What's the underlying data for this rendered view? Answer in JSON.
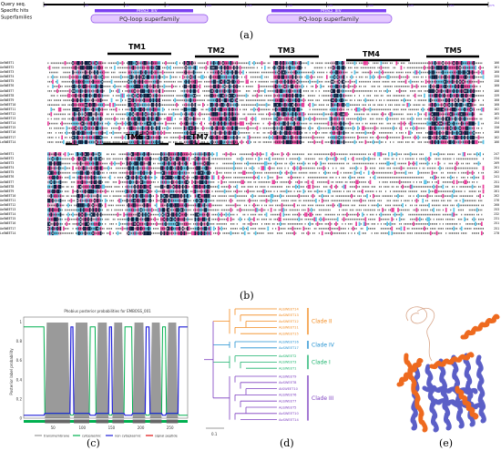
{
  "panel_labels": {
    "a": "(a)",
    "b": "(b)",
    "c": "(c)",
    "d": "(d)",
    "e": "(e)"
  },
  "cdd": {
    "row_labels": [
      "Query seq.",
      "Specific hits",
      "Superfamilies"
    ],
    "ticks": [
      "1",
      "25",
      "50",
      "75",
      "100",
      "125",
      "150",
      "175",
      "200",
      "225",
      "250",
      "275"
    ],
    "hit_label": "MtN3_slv",
    "superfamily_label": "PQ-loop superfamily",
    "colors": {
      "hit": "#7b3ff2",
      "super": "#e4c8ff",
      "super_border": "#8a4de8"
    }
  },
  "alignment": {
    "block1": {
      "tm_labels": [
        "TM1",
        "TM2",
        "TM3",
        "TM4",
        "TM5"
      ],
      "names": [
        "AoSWEET1",
        "AoSWEET2",
        "AoSWEET3",
        "AoSWEET4",
        "AoSWEET5",
        "AoSWEET6",
        "AoSWEET7",
        "AoSWEET8",
        "AoSWEET9",
        "AoSWEET10",
        "AoSWEET11",
        "AoSWEET12",
        "AoSWEET13",
        "AoSWEET14",
        "AoSWEET15",
        "AoSWEET16",
        "AoSWEET17",
        "LoSWEET14"
      ],
      "ends": [
        "166",
        "161",
        "160",
        "155",
        "158",
        "160",
        "166",
        "159",
        "160",
        "160",
        "162",
        "165",
        "162",
        "154",
        "150",
        "160",
        "162",
        "166"
      ]
    },
    "block2": {
      "tm_labels": [
        "TM6",
        "TM7"
      ],
      "names": [
        "AoSWEET1",
        "AoSWEET2",
        "AoSWEET3",
        "AoSWEET4",
        "AoSWEET5",
        "AoSWEET6",
        "AoSWEET7",
        "AoSWEET8",
        "AoSWEET9",
        "AoSWEET10",
        "AoSWEET11",
        "AoSWEET12",
        "AoSWEET13",
        "AoSWEET14",
        "AoSWEET15",
        "AoSWEET16",
        "AoSWEET17",
        "LoSWEET14"
      ],
      "ends": [
        "247",
        "234",
        "269",
        "261",
        "262",
        "241",
        "251",
        "260",
        "261",
        "262",
        "276",
        "260",
        "253",
        "232",
        "231",
        "251",
        "251",
        "270"
      ]
    },
    "colors": {
      "dark": "#0a1b3d",
      "pink": "#e83d9a",
      "cyan": "#57c4e8",
      "pale": "#f0c4dc"
    }
  },
  "tmhmm": {
    "title": "Phobius posterior probabilities for EMBOSS_001",
    "ylabel": "Posterior label probability",
    "yticks": [
      "0",
      "0.2",
      "0.4",
      "0.6",
      "0.8",
      "1"
    ],
    "xticks": [
      "50",
      "100",
      "150",
      "200",
      "250"
    ],
    "legend": [
      "transmembrane",
      "cytoplasmic",
      "non cytoplasmic",
      "signal peptide"
    ],
    "colors": {
      "tm": "#9a9a9a",
      "cyt": "#00b050",
      "noncyt": "#1f1fd9",
      "signal": "#e01010"
    }
  },
  "tree": {
    "clades": [
      {
        "name": "Clade II",
        "color": "#f28a1e",
        "leaves": [
          "AoSWEET14",
          "AoSWEET13",
          "AoSWEET12",
          "AoSWEET11",
          "AoSWEET15"
        ]
      },
      {
        "name": "Clade IV",
        "color": "#1f8fd0",
        "leaves": [
          "AoSWEET16",
          "AoSWEET17"
        ]
      },
      {
        "name": "Clade I",
        "color": "#19b26b",
        "leaves": [
          "AoSWEET2",
          "AoSWEET3",
          "AoSWEET1"
        ]
      },
      {
        "name": "Clade III",
        "color": "#7d3fc0",
        "leaves": [
          "AoSWEET9",
          "AoSWEET8",
          "AtSWEET10",
          "AoSWEET6",
          "AoSWEET7",
          "AoSWEET5",
          "AoSWEET10",
          "AoSWEET14"
        ]
      }
    ],
    "scale_label": "0.1"
  },
  "structure": {
    "colors": {
      "helix_blue": "#5b5fc7",
      "helix_orange": "#ee6a1f",
      "coil": "#d8a68a"
    }
  }
}
